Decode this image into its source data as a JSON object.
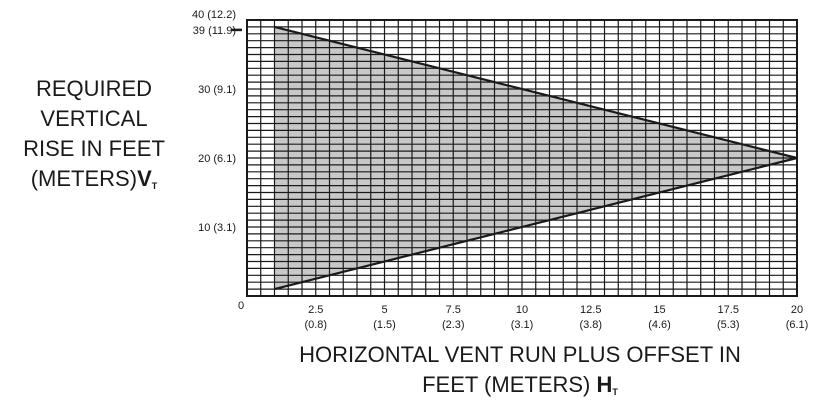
{
  "chart_data": {
    "type": "area",
    "title": "",
    "ylabel_lines": [
      "REQUIRED",
      "VERTICAL",
      "RISE IN FEET",
      "(METERS)"
    ],
    "ylabel_var": "V",
    "ylabel_sub": "T",
    "xlabel_lines": [
      "HORIZONTAL VENT RUN PLUS OFFSET IN",
      "FEET (METERS)"
    ],
    "xlabel_var": "H",
    "xlabel_sub": "T",
    "xlim": [
      0,
      20
    ],
    "ylim": [
      0,
      40
    ],
    "grid": true,
    "x_ticks": [
      {
        "value": 2.5,
        "label": "2.5",
        "sub": "(0.8)"
      },
      {
        "value": 5,
        "label": "5",
        "sub": "(1.5)"
      },
      {
        "value": 7.5,
        "label": "7.5",
        "sub": "(2.3)"
      },
      {
        "value": 10,
        "label": "10",
        "sub": "(3.1)"
      },
      {
        "value": 12.5,
        "label": "12.5",
        "sub": "(3.8)"
      },
      {
        "value": 15,
        "label": "15",
        "sub": "(4.6)"
      },
      {
        "value": 17.5,
        "label": "17.5",
        "sub": "(5.3)"
      },
      {
        "value": 20,
        "label": "20",
        "sub": "(6.1)"
      }
    ],
    "y_ticks": [
      {
        "value": 10,
        "label": "10 (3.1)"
      },
      {
        "value": 20,
        "label": "20 (6.1)"
      },
      {
        "value": 30,
        "label": "30 (9.1)"
      },
      {
        "value": 39,
        "label": "39 (11.9)"
      },
      {
        "value": 40,
        "label": "40 (12.2)"
      }
    ],
    "origin_label": "0",
    "region": {
      "fill": "#c8c8c8",
      "points": [
        {
          "x": 1,
          "y": 39
        },
        {
          "x": 20,
          "y": 20
        },
        {
          "x": 1,
          "y": 1
        }
      ]
    },
    "colors": {
      "grid": "#1a1a1a",
      "boundary": "#1a1a1a"
    }
  }
}
